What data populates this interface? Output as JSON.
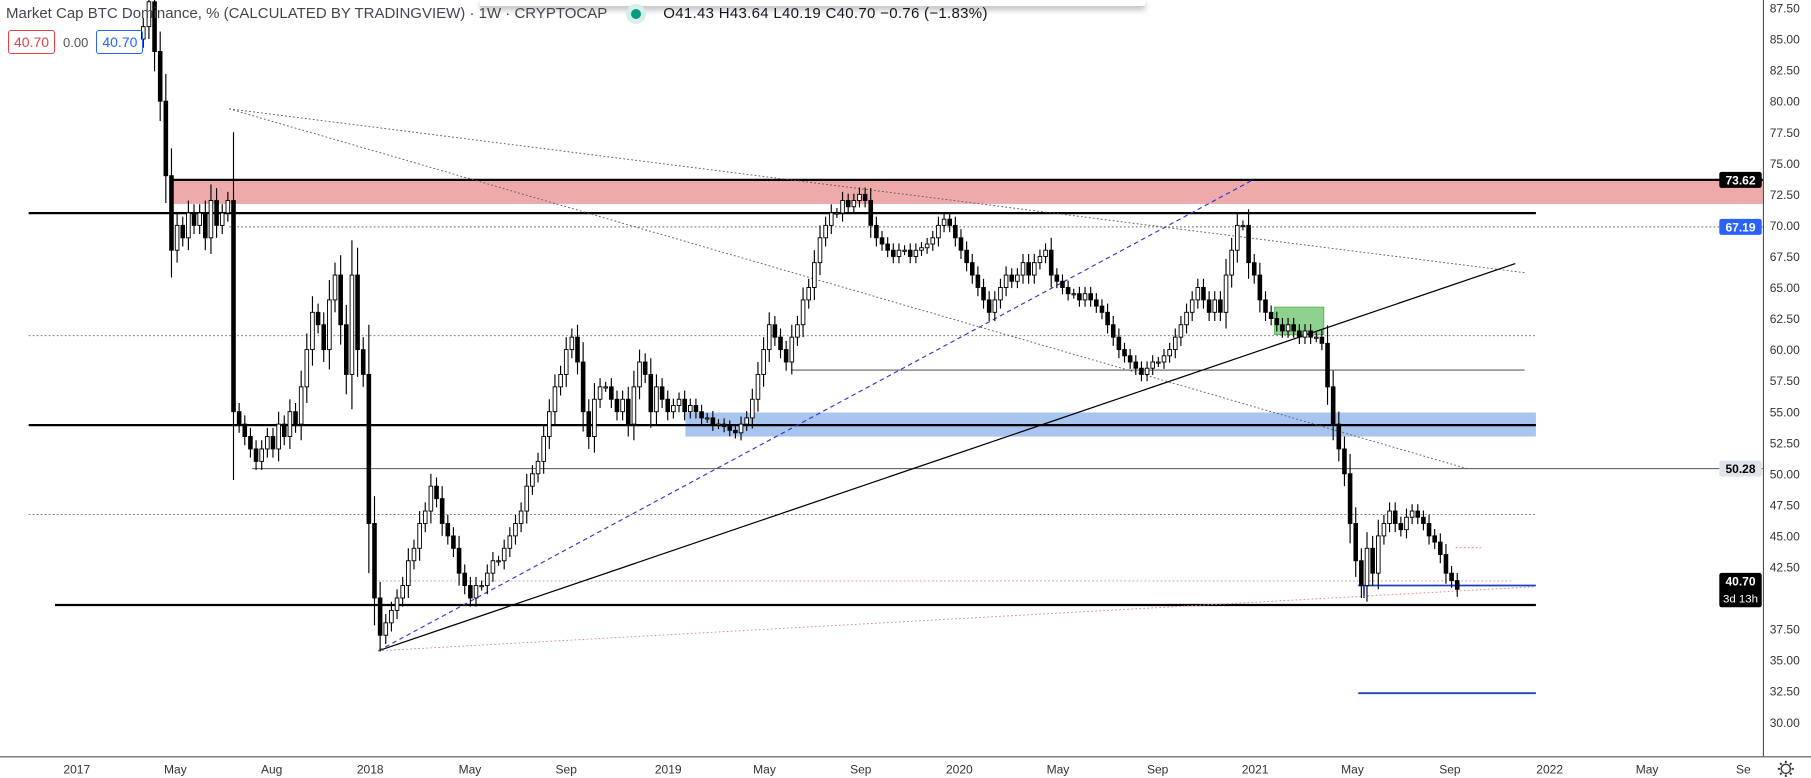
{
  "header": {
    "title": "Market Cap BTC Dominance, % (CALCULATED BY TRADINGVIEW) · 1W · CRYPTOCAP",
    "ohlc": "O41.43 H43.64 L40.19 C40.70 −0.76 (−1.83%)",
    "price_box_left": "40.70",
    "spread": "0.00",
    "price_box_right": "40.70"
  },
  "colors": {
    "up": "#ffffff",
    "down": "#000000",
    "accent": "#2962ff",
    "resistance_zone": "#eeaaaa",
    "support_zone": "#a8c5f0",
    "accumulation_zone": "#8fd18f"
  },
  "chart_data": {
    "type": "candlestick",
    "title": "Market Cap BTC Dominance, %",
    "interval": "1W",
    "ylabel": "%",
    "ylim": [
      29,
      88
    ],
    "price_ticks": [
      "87.50",
      "85.00",
      "82.50",
      "80.00",
      "77.50",
      "75.00",
      "72.50",
      "70.00",
      "67.50",
      "65.00",
      "62.50",
      "60.00",
      "57.50",
      "55.00",
      "52.50",
      "50.00",
      "47.50",
      "45.00",
      "42.50",
      "37.50",
      "35.00",
      "32.50",
      "30.00"
    ],
    "time_ticks": [
      "2017",
      "May",
      "Aug",
      "2018",
      "May",
      "Sep",
      "2019",
      "May",
      "Sep",
      "2020",
      "May",
      "Sep",
      "2021",
      "May",
      "Sep",
      "2022",
      "May",
      "Se"
    ],
    "closes": [
      86,
      88,
      84,
      80,
      74,
      68,
      70,
      69,
      71,
      70,
      71,
      69,
      72,
      70,
      71,
      72,
      55,
      54,
      53,
      52,
      51,
      52,
      53,
      52,
      54,
      53,
      55,
      54,
      57,
      60,
      63,
      62,
      60,
      64,
      66,
      62,
      58,
      66,
      60,
      58,
      46,
      40,
      37,
      38,
      39,
      40,
      41,
      43,
      44,
      46,
      47,
      49,
      48,
      46,
      45,
      44,
      42,
      41,
      40,
      41,
      41,
      42,
      43,
      43,
      44,
      45,
      46,
      47,
      49,
      50,
      51,
      53,
      55,
      57,
      58,
      60,
      61,
      59,
      55,
      53,
      56,
      57,
      57,
      56,
      55,
      56,
      54,
      57,
      59,
      58,
      55,
      57,
      56,
      55,
      55.5,
      56,
      55,
      55.5,
      55,
      54.5,
      54.5,
      54,
      54,
      53.8,
      53.5,
      53.3,
      54,
      54.5,
      56,
      58,
      60,
      62,
      61,
      60,
      59,
      61,
      62,
      64,
      65,
      67,
      69,
      70,
      71,
      71,
      72,
      71.5,
      72,
      72.5,
      72,
      70,
      69,
      68.5,
      68,
      67.5,
      68,
      68,
      67.5,
      68,
      68.2,
      68.5,
      69,
      70,
      70.5,
      70,
      69,
      68,
      67,
      66,
      65,
      64,
      63,
      64,
      65,
      66,
      65.5,
      66,
      67,
      66,
      67,
      67.5,
      68,
      66,
      65.5,
      65,
      64.5,
      64.5,
      64,
      64.5,
      64,
      63.5,
      63,
      62,
      61,
      60,
      59.5,
      59,
      58.5,
      58,
      58.5,
      59,
      59,
      59.5,
      60,
      61,
      62,
      63,
      64,
      65,
      64,
      63,
      64,
      63,
      66,
      68,
      70,
      70,
      67,
      66,
      64,
      63,
      62.5,
      62,
      61.5,
      62,
      61.5,
      61,
      61.5,
      61,
      61,
      60.5,
      57,
      54,
      52,
      50,
      46,
      43,
      41,
      44,
      42,
      45,
      46,
      47,
      46,
      45.5,
      46.5,
      47,
      46.5,
      46,
      45,
      44.5,
      43.5,
      42,
      41.4,
      40.7
    ],
    "last": {
      "open": 41.43,
      "high": 43.64,
      "low": 40.19,
      "close": 40.7,
      "change": -0.76,
      "change_pct": -1.83
    },
    "price_labels": {
      "resistance": "73.62",
      "level_blue": "67.19",
      "level_gray": "50.28",
      "last_price": "40.70",
      "countdown": "3d 13h"
    }
  }
}
